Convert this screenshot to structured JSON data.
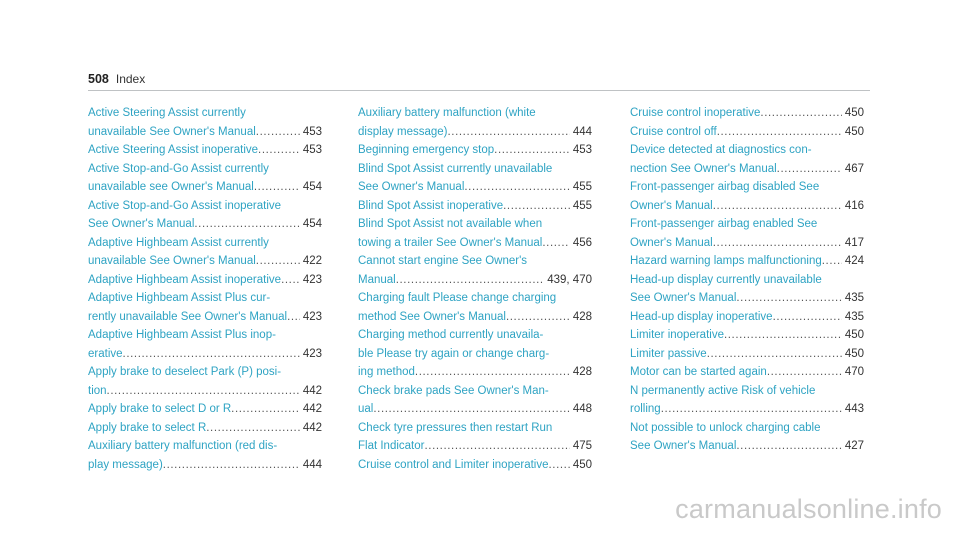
{
  "header": {
    "page_number": "508",
    "title": "Index"
  },
  "columns": [
    [
      {
        "lines": [
          "Active Steering Assist currently",
          "unavailable See Owner's Manual"
        ],
        "page": "453"
      },
      {
        "lines": [
          "Active Steering Assist inoperative"
        ],
        "page": "453"
      },
      {
        "lines": [
          "Active Stop-and-Go Assist currently",
          "unavailable see Owner's Manual"
        ],
        "page": "454"
      },
      {
        "lines": [
          "Active Stop-and-Go Assist inoperative",
          "See Owner's Manual"
        ],
        "page": "454"
      },
      {
        "lines": [
          "Adaptive Highbeam Assist currently",
          "unavailable See Owner's Manual"
        ],
        "page": "422"
      },
      {
        "lines": [
          "Adaptive Highbeam Assist inoperative"
        ],
        "page": "423"
      },
      {
        "lines": [
          "Adaptive Highbeam Assist Plus cur-",
          "rently unavailable See Owner's Manual"
        ],
        "page": "423"
      },
      {
        "lines": [
          "Adaptive Highbeam Assist Plus inop-",
          "erative"
        ],
        "page": "423"
      },
      {
        "lines": [
          "Apply brake to deselect Park (P) posi-",
          "tion"
        ],
        "page": "442"
      },
      {
        "lines": [
          "Apply brake to select D or R"
        ],
        "page": "442"
      },
      {
        "lines": [
          "Apply brake to select R"
        ],
        "page": "442"
      },
      {
        "lines": [
          "Auxiliary battery malfunction  (red dis-",
          "play message)"
        ],
        "page": "444"
      }
    ],
    [
      {
        "lines": [
          "Auxiliary battery malfunction  (white",
          "display message)"
        ],
        "page": "444"
      },
      {
        "lines": [
          "Beginning emergency stop"
        ],
        "page": "453"
      },
      {
        "lines": [
          "Blind Spot Assist currently unavailable",
          "See Owner's Manual"
        ],
        "page": "455"
      },
      {
        "lines": [
          "Blind Spot Assist inoperative"
        ],
        "page": "455"
      },
      {
        "lines": [
          "Blind Spot Assist not available when",
          "towing a trailer See Owner's Manual"
        ],
        "page": "456"
      },
      {
        "lines": [
          "Cannot start engine See Owner's",
          "Manual"
        ],
        "page": "439, 470"
      },
      {
        "lines": [
          "Charging fault Please change charging",
          "method See Owner's Manual"
        ],
        "page": "428"
      },
      {
        "lines": [
          "Charging method currently unavaila-",
          "ble Please try again or change charg-",
          "ing method"
        ],
        "page": "428"
      },
      {
        "lines": [
          "Check brake pads See Owner's Man-",
          "ual"
        ],
        "page": "448"
      },
      {
        "lines": [
          "Check tyre pressures then restart Run",
          "Flat Indicator"
        ],
        "page": "475"
      },
      {
        "lines": [
          "Cruise control and Limiter inoperative"
        ],
        "page": "450"
      }
    ],
    [
      {
        "lines": [
          "Cruise control inoperative"
        ],
        "page": "450"
      },
      {
        "lines": [
          "Cruise control off"
        ],
        "page": "450"
      },
      {
        "lines": [
          "Device detected at diagnostics con-",
          "nection See Owner's Manual"
        ],
        "page": "467"
      },
      {
        "lines": [
          "Front-passenger airbag disabled See",
          "Owner's Manual"
        ],
        "page": "416"
      },
      {
        "lines": [
          "Front-passenger airbag enabled See",
          "Owner's Manual"
        ],
        "page": "417"
      },
      {
        "lines": [
          "Hazard warning lamps malfunctioning"
        ],
        "page": "424"
      },
      {
        "lines": [
          "Head-up display currently unavailable",
          "See Owner's Manual"
        ],
        "page": "435"
      },
      {
        "lines": [
          "Head-up display inoperative"
        ],
        "page": "435"
      },
      {
        "lines": [
          "Limiter inoperative"
        ],
        "page": "450"
      },
      {
        "lines": [
          "Limiter passive"
        ],
        "page": "450"
      },
      {
        "lines": [
          "Motor can be started again"
        ],
        "page": "470"
      },
      {
        "lines": [
          "N permanently active Risk of vehicle",
          "rolling"
        ],
        "page": "443"
      },
      {
        "lines": [
          "Not possible to unlock charging cable",
          "See Owner's Manual"
        ],
        "page": "427"
      }
    ]
  ],
  "watermark": "carmanualsonline.info"
}
